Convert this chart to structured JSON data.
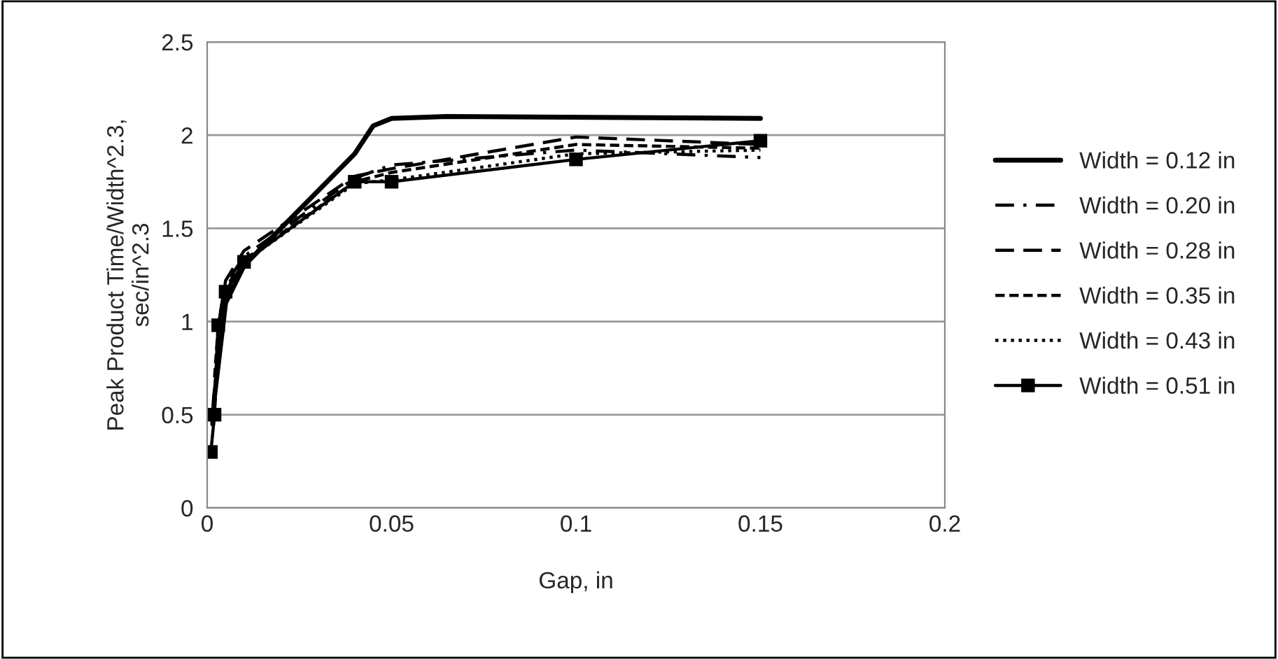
{
  "chart_data": {
    "type": "line",
    "xlabel": "Gap, in",
    "ylabel": "Peak Product Time/Width^2.3,\nsec/in^2.3",
    "xlim": [
      0,
      0.2
    ],
    "xticks": [
      0,
      0.05,
      0.1,
      0.15,
      0.2
    ],
    "ylim": [
      0,
      2.5
    ],
    "yticks": [
      0,
      0.5,
      1,
      1.5,
      2,
      2.5
    ],
    "grid": "y",
    "legend": "right",
    "series": [
      {
        "name": "Width = 0.12 in",
        "color": "#000000",
        "line_style": "solid",
        "marker": "none",
        "x": [
          0.0015,
          0.002,
          0.005,
          0.01,
          0.02,
          0.04,
          0.045,
          0.05,
          0.065,
          0.15
        ],
        "values": [
          0.45,
          0.6,
          1.1,
          1.3,
          1.5,
          1.9,
          2.05,
          2.09,
          2.1,
          2.09
        ]
      },
      {
        "name": "Width = 0.20 in",
        "color": "#000000",
        "line_style": "dashdot",
        "marker": "none",
        "x": [
          0.002,
          0.003,
          0.005,
          0.01,
          0.04,
          0.05,
          0.1,
          0.15
        ],
        "values": [
          0.6,
          0.98,
          1.2,
          1.35,
          1.77,
          1.84,
          1.92,
          1.88
        ]
      },
      {
        "name": "Width = 0.28 in",
        "color": "#000000",
        "line_style": "dashed",
        "marker": "none",
        "x": [
          0.0025,
          0.003,
          0.005,
          0.01,
          0.04,
          0.05,
          0.1,
          0.15
        ],
        "values": [
          0.75,
          0.98,
          1.22,
          1.38,
          1.78,
          1.82,
          1.99,
          1.95
        ]
      },
      {
        "name": "Width = 0.35 in",
        "color": "#000000",
        "line_style": "shortdash",
        "marker": "none",
        "x": [
          0.002,
          0.003,
          0.005,
          0.01,
          0.04,
          0.05,
          0.1,
          0.15
        ],
        "values": [
          0.7,
          0.98,
          1.18,
          1.33,
          1.75,
          1.8,
          1.95,
          1.93
        ]
      },
      {
        "name": "Width = 0.43 in",
        "color": "#000000",
        "line_style": "dotted",
        "marker": "none",
        "x": [
          0.0025,
          0.003,
          0.005,
          0.01,
          0.04,
          0.05,
          0.1,
          0.15
        ],
        "values": [
          0.8,
          0.98,
          1.17,
          1.32,
          1.74,
          1.76,
          1.9,
          1.92
        ]
      },
      {
        "name": "Width = 0.51 in",
        "color": "#000000",
        "line_style": "solid",
        "marker": "square",
        "x": [
          0.001,
          0.002,
          0.003,
          0.005,
          0.01,
          0.04,
          0.05,
          0.1,
          0.15
        ],
        "values": [
          0.3,
          0.5,
          0.98,
          1.16,
          1.32,
          1.75,
          1.75,
          1.87,
          1.97
        ]
      }
    ]
  }
}
